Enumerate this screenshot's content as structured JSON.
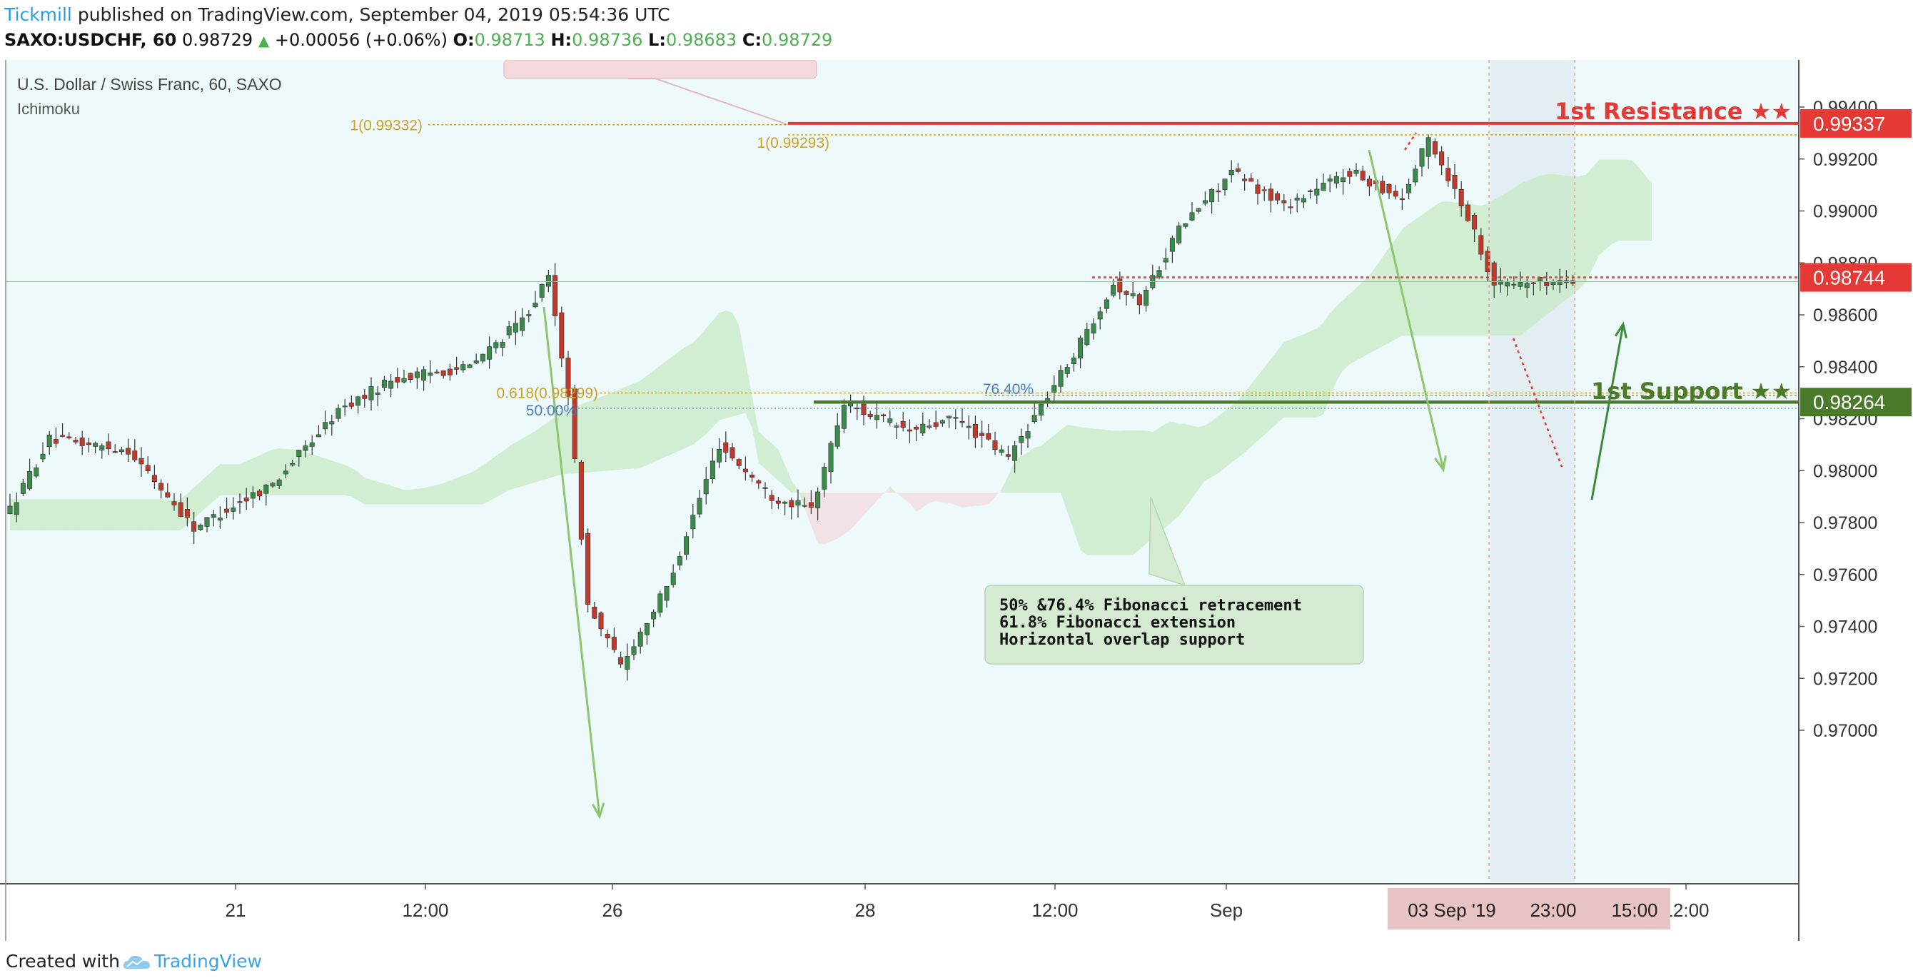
{
  "header": {
    "author": "Tickmill",
    "published": " published on TradingView.com, September 04, 2019 05:54:36 UTC",
    "symbol": "SAXO:USDCHF, 60",
    "last": "0.98729",
    "change": "+0.00056 (+0.06%)",
    "o_label": "O:",
    "o": "0.98713",
    "h_label": "H:",
    "h": "0.98736",
    "l_label": "L:",
    "l": "0.98683",
    "c_label": "C:",
    "c": "0.98729"
  },
  "footer": {
    "created_with": "Created with",
    "brand": "TradingView"
  },
  "colors": {
    "chart_bg": "#eef9fc",
    "up_candle": "#3b8a4a",
    "down_candle": "#c0392b",
    "resistance": "#e53935",
    "support": "#4a7a2a",
    "fib_gold": "#c9a227",
    "fib_blue": "#4a7fc1",
    "cloud_green": "#c7e8c4",
    "cloud_red": "#f3d9dc",
    "arrow_green": "#8cc66f"
  },
  "chart_data": {
    "type": "candlestick",
    "title": "U.S. Dollar / Swiss Franc, 60, SAXO",
    "indicator": "Ichimoku",
    "ylim": [
      0.969,
      0.9945
    ],
    "y_ticks": [
      "0.99400",
      "0.99200",
      "0.99000",
      "0.98800",
      "0.98600",
      "0.98400",
      "0.98200",
      "0.98000",
      "0.97800",
      "0.97600",
      "0.97400",
      "0.97200",
      "0.97000"
    ],
    "x_ticks": [
      "21",
      "12:00",
      "26",
      "28",
      "12:00",
      "Sep",
      "12:00"
    ],
    "x_range_label": [
      "03 Sep '19",
      "23:00",
      "15:00"
    ],
    "path_anchors": [
      {
        "i": 0,
        "p": 0.9785
      },
      {
        "i": 6,
        "p": 0.9812
      },
      {
        "i": 18,
        "p": 0.9808
      },
      {
        "i": 28,
        "p": 0.9778
      },
      {
        "i": 40,
        "p": 0.9795
      },
      {
        "i": 50,
        "p": 0.9823
      },
      {
        "i": 58,
        "p": 0.9835
      },
      {
        "i": 70,
        "p": 0.984
      },
      {
        "i": 78,
        "p": 0.9858
      },
      {
        "i": 82,
        "p": 0.9874
      },
      {
        "i": 85,
        "p": 0.983
      },
      {
        "i": 88,
        "p": 0.9748
      },
      {
        "i": 93,
        "p": 0.9725
      },
      {
        "i": 100,
        "p": 0.9755
      },
      {
        "i": 108,
        "p": 0.981
      },
      {
        "i": 116,
        "p": 0.979
      },
      {
        "i": 122,
        "p": 0.9785
      },
      {
        "i": 127,
        "p": 0.9826
      },
      {
        "i": 137,
        "p": 0.9815
      },
      {
        "i": 144,
        "p": 0.982
      },
      {
        "i": 152,
        "p": 0.9805
      },
      {
        "i": 162,
        "p": 0.9845
      },
      {
        "i": 168,
        "p": 0.9872
      },
      {
        "i": 172,
        "p": 0.9865
      },
      {
        "i": 178,
        "p": 0.9893
      },
      {
        "i": 186,
        "p": 0.9915
      },
      {
        "i": 194,
        "p": 0.9902
      },
      {
        "i": 204,
        "p": 0.9915
      },
      {
        "i": 212,
        "p": 0.9905
      },
      {
        "i": 216,
        "p": 0.9928
      },
      {
        "i": 222,
        "p": 0.9898
      },
      {
        "i": 226,
        "p": 0.9872
      },
      {
        "i": 238,
        "p": 0.9873
      }
    ],
    "levels": {
      "resistance": {
        "price": 0.99337,
        "label": "0.99337",
        "name": "1st Resistance ★★"
      },
      "pivot": {
        "price": 0.98744,
        "label": "0.98744"
      },
      "support": {
        "price": 0.98264,
        "label": "0.98264",
        "name": "1st Support ★★"
      },
      "fib_ext_a": {
        "price": 0.99332,
        "label": "1(0.99332)"
      },
      "fib_ext_b": {
        "price": 0.99293,
        "label": "1(0.99293)"
      },
      "fib_ext_c": {
        "price": 0.98299,
        "label": "0.618(0.98299)"
      },
      "fib_ret_50": {
        "price": 0.9824,
        "label": "50.00%"
      },
      "fib_ret_764": {
        "price": 0.9829,
        "label": "76.40%"
      }
    },
    "note_lines": [
      "50% &76.4% Fibonacci retracement",
      "61.8% Fibonacci extension",
      "Horizontal overlap support"
    ]
  }
}
